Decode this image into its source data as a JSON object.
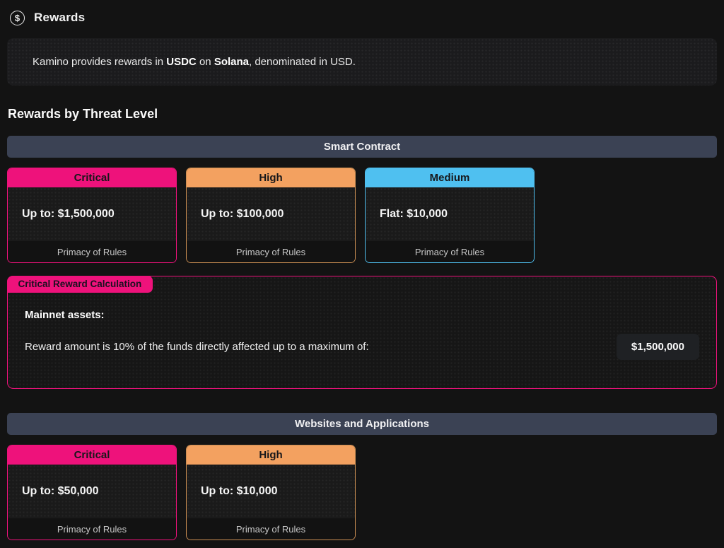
{
  "header": {
    "title": "Rewards",
    "icon": "dollar-circle-icon",
    "icon_glyph": "$"
  },
  "banner": {
    "p1": "Kamino provides rewards in ",
    "b1": "USDC",
    "p2": " on ",
    "b2": "Solana",
    "p3": ", denominated in USD."
  },
  "section_heading": "Rewards by Threat Level",
  "colors": {
    "critical": "#ee127b",
    "high": "#f3a160",
    "medium": "#4fc0f0",
    "group_bar": "#3b4254",
    "page_bg": "#131313"
  },
  "groups": [
    {
      "title": "Smart Contract",
      "cards": [
        {
          "severity": "Critical",
          "amount": "Up to: $1,500,000",
          "footer": "Primacy of Rules"
        },
        {
          "severity": "High",
          "amount": "Up to: $100,000",
          "footer": "Primacy of Rules"
        },
        {
          "severity": "Medium",
          "amount": "Flat: $10,000",
          "footer": "Primacy of Rules"
        }
      ]
    },
    {
      "title": "Websites and Applications",
      "cards": [
        {
          "severity": "Critical",
          "amount": "Up to: $50,000",
          "footer": "Primacy of Rules"
        },
        {
          "severity": "High",
          "amount": "Up to: $10,000",
          "footer": "Primacy of Rules"
        }
      ]
    }
  ],
  "calc_box": {
    "tag": "Critical Reward Calculation",
    "subtitle": "Mainnet assets:",
    "description": "Reward amount is 10% of the funds directly affected up to a maximum of:",
    "amount": "$1,500,000"
  }
}
